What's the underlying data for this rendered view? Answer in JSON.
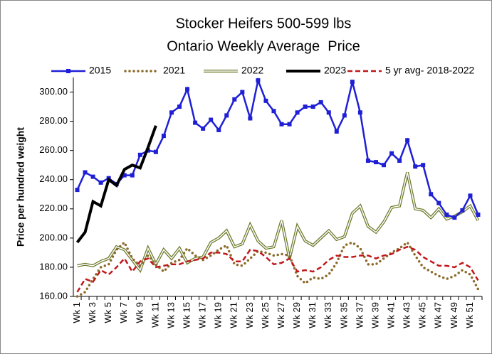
{
  "chart_data": {
    "type": "line",
    "title": "Stocker Heifers 500-599 lbs",
    "subtitle": "Ontario Weekly Average  Price",
    "y_label": "Price per hundred weight",
    "categories": [
      "Wk 1",
      null,
      "Wk 3",
      null,
      "Wk 5",
      null,
      "Wk 7",
      null,
      "Wk 9",
      null,
      "Wk 11",
      null,
      "Wk 13",
      null,
      "Wk 15",
      null,
      "Wk 17",
      null,
      "Wk 19",
      null,
      "Wk 21",
      null,
      "Wk 23",
      null,
      "Wk 25",
      null,
      "Wk 27",
      null,
      "Wk 29",
      null,
      "Wk 31",
      null,
      "Wk 33",
      null,
      "Wk 35",
      null,
      "Wk 37",
      null,
      "Wk 39",
      null,
      "Wk 41",
      null,
      "Wk 43",
      null,
      "Wk 45",
      null,
      "Wk 47",
      null,
      "Wk 49",
      null,
      "Wk 51",
      null
    ],
    "ylim": [
      160,
      310
    ],
    "yticks": [
      {
        "value": 160,
        "label": "160.00"
      },
      {
        "value": 180,
        "label": "180.00"
      },
      {
        "value": 200,
        "label": "200.00"
      },
      {
        "value": 220,
        "label": "220.00"
      },
      {
        "value": 240,
        "label": "240.00"
      },
      {
        "value": 260,
        "label": "260.00"
      },
      {
        "value": 280,
        "label": "280.00"
      },
      {
        "value": 300,
        "label": "300.00"
      }
    ],
    "grid": false,
    "legend": "top",
    "series": [
      {
        "name": "2015",
        "color": "#1f1fd6",
        "style": "solid",
        "marker": "square",
        "values": [
          233,
          245,
          242,
          238,
          241,
          237,
          243,
          243,
          257,
          260,
          259,
          270,
          286,
          290,
          302,
          279,
          275,
          281,
          274,
          284,
          295,
          300,
          282,
          308,
          294,
          287,
          278,
          278,
          286,
          290,
          290,
          293,
          286,
          273,
          284,
          307,
          286,
          253,
          252,
          250,
          258,
          253,
          267,
          249,
          250,
          230,
          224,
          216,
          214,
          219,
          229,
          216
        ]
      },
      {
        "name": "2021",
        "color": "#8b6a2b",
        "style": "dotted",
        "values": [
          160,
          163,
          172,
          180,
          182,
          192,
          197,
          186,
          181,
          188,
          182,
          177,
          183,
          185,
          193,
          188,
          185,
          188,
          192,
          195,
          182,
          181,
          186,
          191,
          190,
          188,
          189,
          188,
          174,
          169,
          173,
          172,
          175,
          183,
          195,
          197,
          193,
          182,
          182,
          186,
          190,
          193,
          197,
          188,
          180,
          177,
          174,
          172,
          174,
          178,
          175,
          165
        ]
      },
      {
        "name": "2022",
        "color": "#6b7a2a",
        "style": "double",
        "values": [
          181,
          182,
          181,
          184,
          186,
          194,
          192,
          185,
          178,
          193,
          182,
          192,
          186,
          193,
          183,
          186,
          187,
          197,
          200,
          205,
          194,
          196,
          209,
          198,
          193,
          194,
          212,
          186,
          208,
          198,
          195,
          200,
          205,
          199,
          201,
          217,
          222,
          208,
          204,
          211,
          221,
          222,
          245,
          220,
          219,
          214,
          220,
          213,
          215,
          218,
          222,
          212
        ]
      },
      {
        "name": "2023",
        "color": "#000000",
        "style": "bold",
        "values": [
          197,
          204,
          225,
          222,
          240,
          236,
          247,
          250,
          248,
          262,
          277,
          null,
          null,
          null,
          null,
          null,
          null,
          null,
          null,
          null,
          null,
          null,
          null,
          null,
          null,
          null,
          null,
          null,
          null,
          null,
          null,
          null,
          null,
          null,
          null,
          null,
          null,
          null,
          null,
          null,
          null,
          null,
          null,
          null,
          null,
          null,
          null,
          null,
          null,
          null,
          null,
          null
        ]
      },
      {
        "name": "5 yr avg- 2018-2022",
        "color": "#c0171c",
        "style": "dashed",
        "values": [
          163,
          172,
          170,
          178,
          175,
          180,
          186,
          177,
          184,
          186,
          180,
          181,
          182,
          182,
          184,
          185,
          186,
          190,
          190,
          189,
          184,
          184,
          192,
          191,
          187,
          182,
          183,
          186,
          177,
          178,
          177,
          180,
          185,
          188,
          187,
          187,
          188,
          188,
          186,
          188,
          189,
          192,
          194,
          192,
          187,
          184,
          181,
          181,
          180,
          183,
          180,
          171
        ]
      }
    ]
  }
}
